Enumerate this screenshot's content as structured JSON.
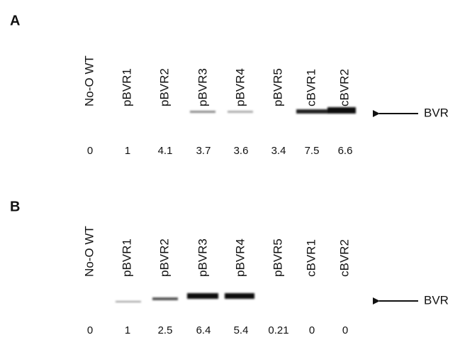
{
  "panels": [
    {
      "label": "A",
      "lanes": [
        "No-O WT",
        "pBVR1",
        "pBVR2",
        "pBVR3",
        "pBVR4",
        "pBVR5",
        "cBVR1",
        "cBVR2"
      ],
      "values": [
        0,
        1,
        4.1,
        3.7,
        3.6,
        3.4,
        7.5,
        6.6
      ],
      "marker": "BVR"
    },
    {
      "label": "B",
      "lanes": [
        "No-O WT",
        "pBVR1",
        "pBVR2",
        "pBVR3",
        "pBVR4",
        "pBVR5",
        "cBVR1",
        "cBVR2"
      ],
      "values": [
        0,
        1,
        2.5,
        6.4,
        5.4,
        0.21,
        0,
        0
      ],
      "marker": "BVR"
    }
  ]
}
